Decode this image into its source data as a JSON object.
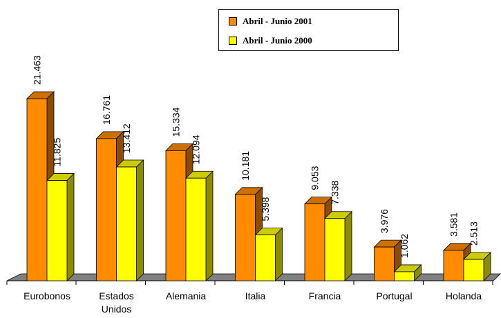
{
  "chart_data": {
    "type": "bar",
    "categories": [
      [
        "Eurobonos"
      ],
      [
        "Estados",
        "Unidos"
      ],
      [
        "Alemania"
      ],
      [
        "Italia"
      ],
      [
        "Francia"
      ],
      [
        "Portugal"
      ],
      [
        "Holanda"
      ]
    ],
    "series": [
      {
        "name": "Abril - Junio  2001",
        "values": [
          21.463,
          16.761,
          15.334,
          10.181,
          9.053,
          3.976,
          3.581
        ],
        "labels": [
          "21.463",
          "16.761",
          "15.334",
          "10.181",
          "9.053",
          "3.976",
          "3.581"
        ],
        "color": "#FF8C00"
      },
      {
        "name": "Abril - Junio  2000",
        "values": [
          11.825,
          13.412,
          12.094,
          5.398,
          7.338,
          1.062,
          2.513
        ],
        "labels": [
          "11.825",
          "13.412",
          "12.094",
          "5.398",
          "7.338",
          "1.062",
          "2.513"
        ],
        "color": "#FFFF00"
      }
    ],
    "title": "",
    "xlabel": "",
    "ylabel": "",
    "ylim": [
      0,
      25
    ],
    "grid": false,
    "legend_position": "top-right",
    "style": "3d"
  }
}
